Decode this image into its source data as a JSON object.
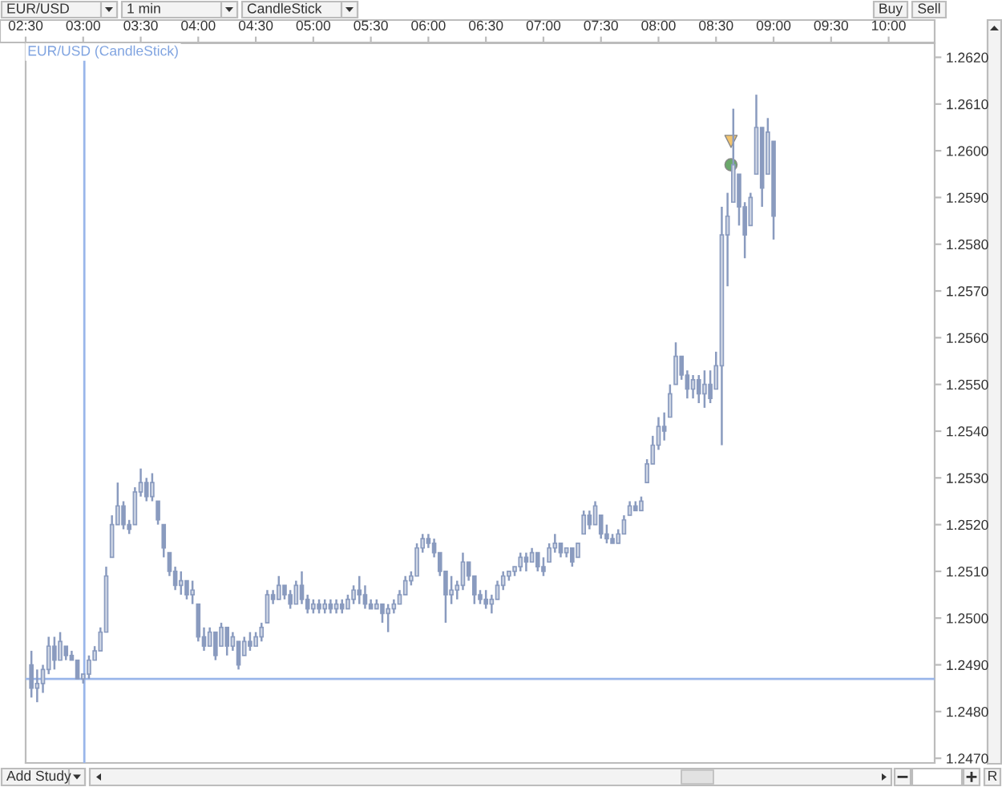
{
  "chart_data": {
    "type": "candlestick",
    "title": "EUR/USD (CandleStick)",
    "x": [
      2.55,
      2.6,
      2.65,
      2.7,
      2.75,
      2.8,
      2.85,
      2.9,
      2.95,
      3.0,
      3.05,
      3.1,
      3.15,
      3.2,
      3.25,
      3.3,
      3.35,
      3.4,
      3.45,
      3.5,
      3.55,
      3.6,
      3.65,
      3.7,
      3.75,
      3.8,
      3.85,
      3.9,
      3.95,
      4.0,
      4.05,
      4.1,
      4.15,
      4.2,
      4.25,
      4.3,
      4.35,
      4.4,
      4.45,
      4.5,
      4.55,
      4.6,
      4.65,
      4.7,
      4.75,
      4.8,
      4.85,
      4.9,
      4.95,
      5.0,
      5.05,
      5.1,
      5.15,
      5.2,
      5.25,
      5.3,
      5.35,
      5.4,
      5.45,
      5.5,
      5.55,
      5.6,
      5.65,
      5.7,
      5.75,
      5.8,
      5.85,
      5.9,
      5.95,
      6.0,
      6.05,
      6.1,
      6.15,
      6.2,
      6.25,
      6.3,
      6.35,
      6.4,
      6.45,
      6.5,
      6.55,
      6.6,
      6.65,
      6.7,
      6.75,
      6.8,
      6.85,
      6.9,
      6.95,
      7.0,
      7.05,
      7.1,
      7.15,
      7.2,
      7.25,
      7.3,
      7.35,
      7.4,
      7.45,
      7.5,
      7.55,
      7.6,
      7.65,
      7.7,
      7.75,
      7.8,
      7.85,
      7.9,
      7.95,
      8.0,
      8.05,
      8.1,
      8.15,
      8.2,
      8.25,
      8.3,
      8.35,
      8.4,
      8.45,
      8.5,
      8.55,
      8.6,
      8.65,
      8.7,
      8.75,
      8.8,
      8.85,
      8.9,
      8.95,
      9.0
    ],
    "ohlc": [
      [
        1.249,
        1.2493,
        1.2483,
        1.2485
      ],
      [
        1.2485,
        1.2489,
        1.2482,
        1.2486
      ],
      [
        1.2486,
        1.249,
        1.2484,
        1.2489
      ],
      [
        1.2489,
        1.2496,
        1.2488,
        1.2494
      ],
      [
        1.2494,
        1.2496,
        1.2489,
        1.2491
      ],
      [
        1.2491,
        1.2497,
        1.2491,
        1.2495
      ],
      [
        1.2494,
        1.2494,
        1.2491,
        1.2492
      ],
      [
        1.2492,
        1.2493,
        1.2491,
        1.2491
      ],
      [
        1.2491,
        1.2491,
        1.2487,
        1.2487
      ],
      [
        1.2487,
        1.2488,
        1.2486,
        1.2488
      ],
      [
        1.2488,
        1.2492,
        1.2487,
        1.2491
      ],
      [
        1.2491,
        1.2494,
        1.2491,
        1.2493
      ],
      [
        1.2493,
        1.2498,
        1.2493,
        1.2497
      ],
      [
        1.2497,
        1.2511,
        1.2497,
        1.2509
      ],
      [
        1.2513,
        1.2522,
        1.2513,
        1.252
      ],
      [
        1.252,
        1.2529,
        1.252,
        1.2524
      ],
      [
        1.2524,
        1.2525,
        1.2519,
        1.252
      ],
      [
        1.252,
        1.2521,
        1.2518,
        1.2519
      ],
      [
        1.252,
        1.2528,
        1.252,
        1.2527
      ],
      [
        1.2527,
        1.2532,
        1.2526,
        1.2529
      ],
      [
        1.2529,
        1.253,
        1.2525,
        1.2526
      ],
      [
        1.2526,
        1.2531,
        1.2525,
        1.2529
      ],
      [
        1.2525,
        1.2525,
        1.252,
        1.2521
      ],
      [
        1.252,
        1.252,
        1.2513,
        1.2515
      ],
      [
        1.2514,
        1.2514,
        1.2509,
        1.251
      ],
      [
        1.251,
        1.2511,
        1.2506,
        1.2507
      ],
      [
        1.2507,
        1.251,
        1.2505,
        1.2508
      ],
      [
        1.2508,
        1.2508,
        1.2504,
        1.2505
      ],
      [
        1.2505,
        1.2508,
        1.2503,
        1.2506
      ],
      [
        1.2503,
        1.2503,
        1.2495,
        1.2496
      ],
      [
        1.2496,
        1.2498,
        1.2493,
        1.2494
      ],
      [
        1.2494,
        1.2498,
        1.2494,
        1.2497
      ],
      [
        1.2497,
        1.2497,
        1.2491,
        1.2492
      ],
      [
        1.2494,
        1.2499,
        1.2494,
        1.2498
      ],
      [
        1.2498,
        1.2498,
        1.2492,
        1.2494
      ],
      [
        1.2494,
        1.2497,
        1.2493,
        1.2496
      ],
      [
        1.2495,
        1.2495,
        1.2489,
        1.249
      ],
      [
        1.2492,
        1.2496,
        1.2492,
        1.2495
      ],
      [
        1.2495,
        1.2497,
        1.2493,
        1.2494
      ],
      [
        1.2494,
        1.2497,
        1.2494,
        1.2496
      ],
      [
        1.2496,
        1.2499,
        1.2495,
        1.2498
      ],
      [
        1.2499,
        1.2506,
        1.2499,
        1.2505
      ],
      [
        1.2505,
        1.2506,
        1.2503,
        1.2504
      ],
      [
        1.2504,
        1.2509,
        1.2504,
        1.2507
      ],
      [
        1.2507,
        1.2507,
        1.2504,
        1.2505
      ],
      [
        1.2505,
        1.2506,
        1.2502,
        1.2503
      ],
      [
        1.2503,
        1.2508,
        1.2503,
        1.2507
      ],
      [
        1.2507,
        1.251,
        1.2503,
        1.2504
      ],
      [
        1.2504,
        1.2505,
        1.2501,
        1.2502
      ],
      [
        1.2502,
        1.2504,
        1.2501,
        1.2503
      ],
      [
        1.2503,
        1.2504,
        1.2501,
        1.2502
      ],
      [
        1.2502,
        1.2504,
        1.2501,
        1.2503
      ],
      [
        1.2503,
        1.2504,
        1.2501,
        1.2502
      ],
      [
        1.2502,
        1.2504,
        1.2501,
        1.2503
      ],
      [
        1.2503,
        1.2504,
        1.2501,
        1.2502
      ],
      [
        1.2502,
        1.2505,
        1.2502,
        1.2504
      ],
      [
        1.2504,
        1.2507,
        1.2503,
        1.2506
      ],
      [
        1.2506,
        1.2509,
        1.2503,
        1.2505
      ],
      [
        1.2505,
        1.2507,
        1.2502,
        1.2503
      ],
      [
        1.2503,
        1.2504,
        1.2502,
        1.2502
      ],
      [
        1.2502,
        1.2504,
        1.2502,
        1.2503
      ],
      [
        1.2503,
        1.2503,
        1.2499,
        1.2501
      ],
      [
        1.2501,
        1.2503,
        1.2497,
        1.2502
      ],
      [
        1.2502,
        1.2504,
        1.2501,
        1.2503
      ],
      [
        1.2503,
        1.2506,
        1.2503,
        1.2505
      ],
      [
        1.2505,
        1.2509,
        1.2505,
        1.2508
      ],
      [
        1.2508,
        1.251,
        1.2507,
        1.2509
      ],
      [
        1.2509,
        1.2516,
        1.2509,
        1.2515
      ],
      [
        1.2515,
        1.2518,
        1.2514,
        1.2517
      ],
      [
        1.2517,
        1.2518,
        1.2515,
        1.2516
      ],
      [
        1.2516,
        1.2517,
        1.2513,
        1.2514
      ],
      [
        1.2514,
        1.2514,
        1.2509,
        1.251
      ],
      [
        1.251,
        1.251,
        1.2499,
        1.2505
      ],
      [
        1.2505,
        1.2509,
        1.2503,
        1.2506
      ],
      [
        1.2506,
        1.2508,
        1.2504,
        1.2507
      ],
      [
        1.2507,
        1.2514,
        1.2506,
        1.2512
      ],
      [
        1.2512,
        1.2512,
        1.2508,
        1.2509
      ],
      [
        1.2509,
        1.2509,
        1.2503,
        1.2505
      ],
      [
        1.2505,
        1.2506,
        1.2503,
        1.2504
      ],
      [
        1.2504,
        1.2506,
        1.2502,
        1.2503
      ],
      [
        1.2503,
        1.2505,
        1.2501,
        1.2504
      ],
      [
        1.2504,
        1.2508,
        1.2504,
        1.2507
      ],
      [
        1.2507,
        1.251,
        1.2506,
        1.2509
      ],
      [
        1.2509,
        1.251,
        1.2508,
        1.251
      ],
      [
        1.251,
        1.2511,
        1.2509,
        1.2511
      ],
      [
        1.2511,
        1.2514,
        1.251,
        1.2513
      ],
      [
        1.2513,
        1.2514,
        1.251,
        1.2512
      ],
      [
        1.2512,
        1.2515,
        1.2512,
        1.2514
      ],
      [
        1.2514,
        1.2514,
        1.251,
        1.2511
      ],
      [
        1.2511,
        1.2513,
        1.2509,
        1.251
      ],
      [
        1.2512,
        1.2516,
        1.2512,
        1.2515
      ],
      [
        1.2515,
        1.2518,
        1.2514,
        1.2516
      ],
      [
        1.2516,
        1.2516,
        1.2513,
        1.2514
      ],
      [
        1.2514,
        1.2515,
        1.2513,
        1.2515
      ],
      [
        1.2515,
        1.2515,
        1.2511,
        1.2512
      ],
      [
        1.2513,
        1.2516,
        1.2513,
        1.2516
      ],
      [
        1.2518,
        1.2523,
        1.2518,
        1.2522
      ],
      [
        1.2522,
        1.2523,
        1.2519,
        1.252
      ],
      [
        1.252,
        1.2525,
        1.252,
        1.2524
      ],
      [
        1.2522,
        1.2522,
        1.2517,
        1.2518
      ],
      [
        1.2518,
        1.252,
        1.2516,
        1.2517
      ],
      [
        1.2517,
        1.2518,
        1.2516,
        1.2516
      ],
      [
        1.2516,
        1.2519,
        1.2516,
        1.2518
      ],
      [
        1.2518,
        1.2522,
        1.2518,
        1.2521
      ],
      [
        1.2522,
        1.2525,
        1.2522,
        1.2524
      ],
      [
        1.2524,
        1.2525,
        1.2523,
        1.2523
      ],
      [
        1.2523,
        1.2526,
        1.2523,
        1.2525
      ],
      [
        1.2529,
        1.2534,
        1.2529,
        1.2533
      ],
      [
        1.2533,
        1.2539,
        1.2533,
        1.2537
      ],
      [
        1.2537,
        1.2543,
        1.2536,
        1.2541
      ],
      [
        1.2541,
        1.2544,
        1.2538,
        1.254
      ],
      [
        1.2543,
        1.255,
        1.2543,
        1.2548
      ],
      [
        1.255,
        1.2559,
        1.255,
        1.2556
      ],
      [
        1.2556,
        1.2556,
        1.2551,
        1.2552
      ],
      [
        1.2552,
        1.2553,
        1.2547,
        1.2549
      ],
      [
        1.2549,
        1.2552,
        1.2547,
        1.2551
      ],
      [
        1.2551,
        1.2552,
        1.2546,
        1.2548
      ],
      [
        1.2548,
        1.2553,
        1.2545,
        1.255
      ],
      [
        1.255,
        1.2553,
        1.2546,
        1.2547
      ],
      [
        1.2549,
        1.2557,
        1.2549,
        1.2554
      ],
      [
        1.2554,
        1.2588,
        1.2537,
        1.2582
      ],
      [
        1.2582,
        1.2591,
        1.2571,
        1.2586
      ],
      [
        1.2589,
        1.2609,
        1.2589,
        1.2597
      ],
      [
        1.2595,
        1.2595,
        1.2584,
        1.2588
      ],
      [
        1.2588,
        1.2589,
        1.2577,
        1.2582
      ],
      [
        1.2584,
        1.2591,
        1.2584,
        1.259
      ],
      [
        1.2595,
        1.2612,
        1.2595,
        1.2605
      ],
      [
        1.2605,
        1.2605,
        1.2588,
        1.2592
      ],
      [
        1.2595,
        1.2607,
        1.2595,
        1.2604
      ],
      [
        1.2602,
        1.2602,
        1.2581,
        1.2586
      ]
    ],
    "color": "#8a9bbf",
    "series": [
      {
        "type": "scatter",
        "x": [
          8.63
        ],
        "values": [
          1.2602
        ],
        "color": "#f2c46e",
        "marker": "triangle"
      },
      {
        "type": "scatter",
        "x": [
          8.63
        ],
        "values": [
          1.2597
        ],
        "color": "#6aa86a",
        "marker": "circle"
      }
    ],
    "xlim": [
      2.5,
      10.4
    ],
    "xticks": [
      {
        "value": 2.5,
        "label": "02:30"
      },
      {
        "value": 3,
        "label": "03:00"
      },
      {
        "value": 3.5,
        "label": "03:30"
      },
      {
        "value": 4,
        "label": "04:00"
      },
      {
        "value": 4.5,
        "label": "04:30"
      },
      {
        "value": 5,
        "label": "05:00"
      },
      {
        "value": 5.5,
        "label": "05:30"
      },
      {
        "value": 6,
        "label": "06:00"
      },
      {
        "value": 6.5,
        "label": "06:30"
      },
      {
        "value": 7,
        "label": "07:00"
      },
      {
        "value": 7.5,
        "label": "07:30"
      },
      {
        "value": 8,
        "label": "08:00"
      },
      {
        "value": 8.5,
        "label": "08:30"
      },
      {
        "value": 9,
        "label": "09:00"
      },
      {
        "value": 9.5,
        "label": "09:30"
      },
      {
        "value": 10,
        "label": "10:00"
      }
    ],
    "ylim": [
      1.2469,
      1.2623
    ],
    "yticks": [
      {
        "value": 1.247,
        "label": "1.2470"
      },
      {
        "value": 1.248,
        "label": "1.2480"
      },
      {
        "value": 1.249,
        "label": "1.2490"
      },
      {
        "value": 1.25,
        "label": "1.2500"
      },
      {
        "value": 1.251,
        "label": "1.2510"
      },
      {
        "value": 1.252,
        "label": "1.2520"
      },
      {
        "value": 1.253,
        "label": "1.2530"
      },
      {
        "value": 1.254,
        "label": "1.2540"
      },
      {
        "value": 1.255,
        "label": "1.2550"
      },
      {
        "value": 1.256,
        "label": "1.2560"
      },
      {
        "value": 1.257,
        "label": "1.2570"
      },
      {
        "value": 1.258,
        "label": "1.2580"
      },
      {
        "value": 1.259,
        "label": "1.2590"
      },
      {
        "value": 1.26,
        "label": "1.2600"
      },
      {
        "value": 1.261,
        "label": "1.2610"
      },
      {
        "value": 1.262,
        "label": "1.2620"
      }
    ],
    "ref_lines": [
      {
        "axis": "x",
        "value": 3.01,
        "color": "#9ab6ea"
      },
      {
        "axis": "y",
        "value": 1.2487,
        "color": "#9ab6ea"
      }
    ],
    "annotations": [
      "EUR/USD",
      "1 min",
      "CandleStick",
      "Buy",
      "Sell",
      "Add Study",
      "R"
    ]
  }
}
